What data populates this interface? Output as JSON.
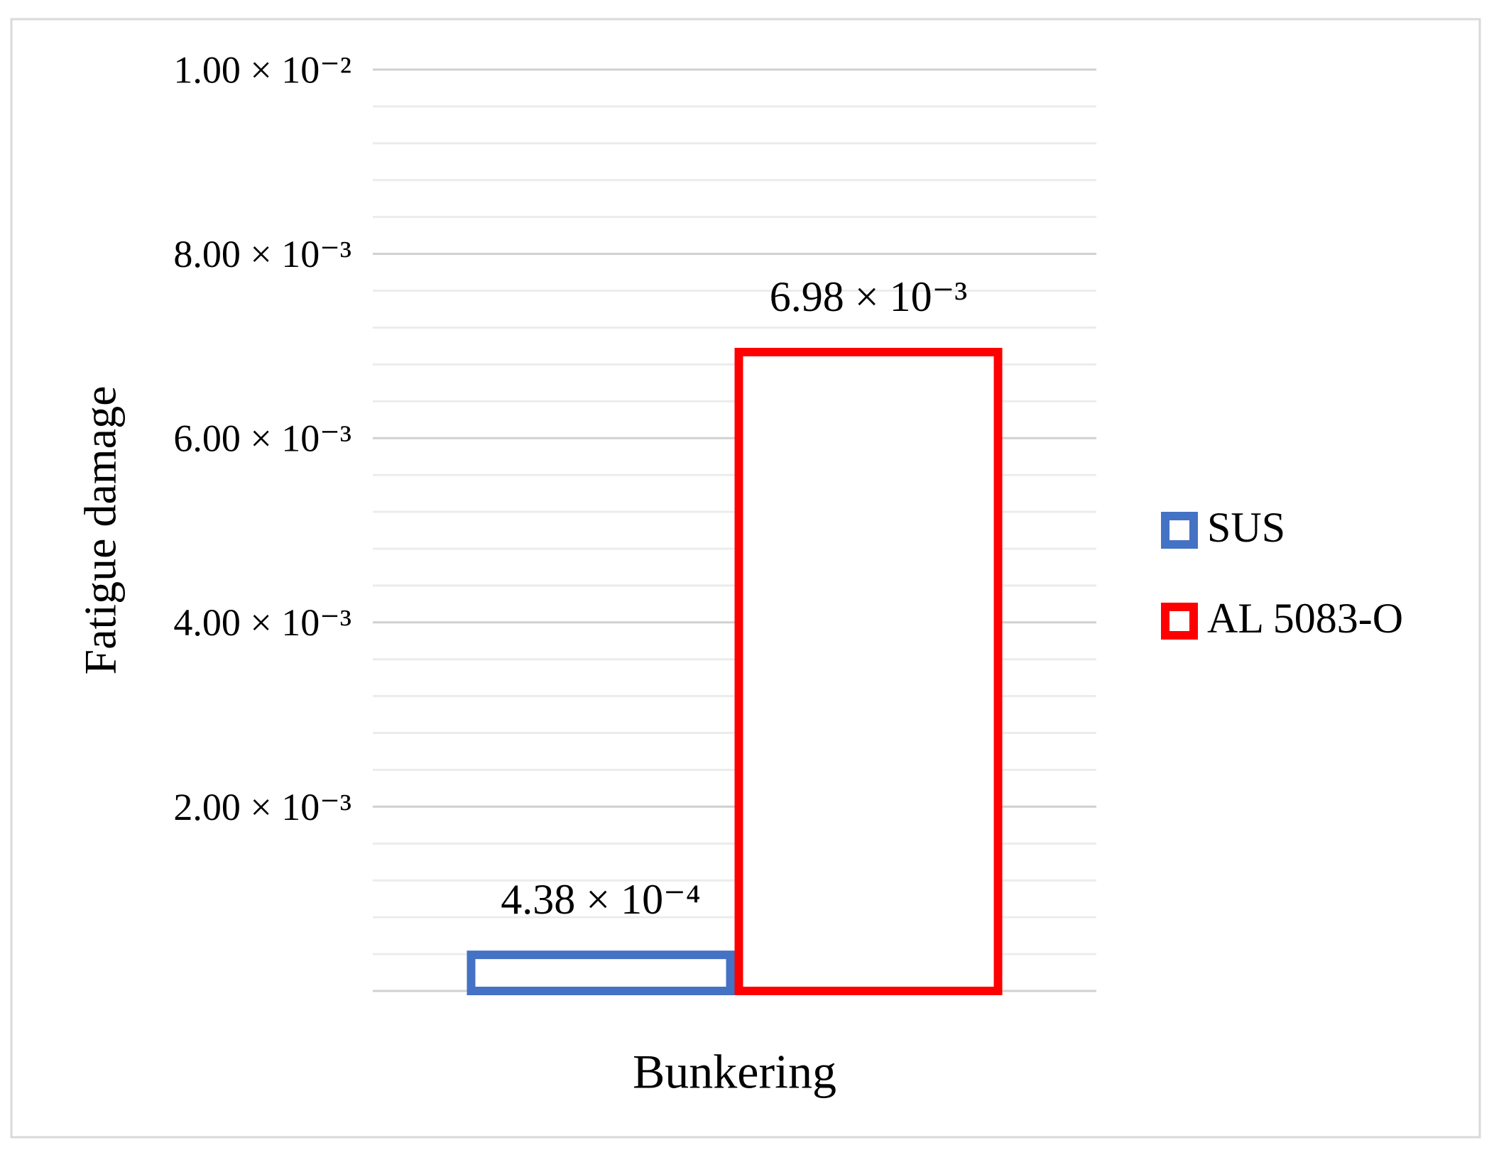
{
  "chart_data": {
    "type": "bar",
    "y_label": "Fatigue damage",
    "categories": [
      "Bunkering"
    ],
    "series": [
      {
        "name": "SUS",
        "color": "#4472c4",
        "values": [
          0.000438
        ],
        "value_labels": [
          "4.38 × 10⁻⁴"
        ]
      },
      {
        "name": "AL 5083-O",
        "color": "#ff0000",
        "values": [
          0.00698
        ],
        "value_labels": [
          "6.98 × 10⁻³"
        ]
      }
    ],
    "ylim": [
      0,
      0.01
    ],
    "yticks": [
      {
        "value": 0.002,
        "label": "2.00 × 10⁻³"
      },
      {
        "value": 0.004,
        "label": "4.00 × 10⁻³"
      },
      {
        "value": 0.006,
        "label": "6.00 × 10⁻³"
      },
      {
        "value": 0.008,
        "label": "8.00 × 10⁻³"
      },
      {
        "value": 0.01,
        "label": "1.00 × 10⁻²"
      }
    ],
    "grid": true,
    "legend": "right",
    "bar_style": "outline"
  }
}
